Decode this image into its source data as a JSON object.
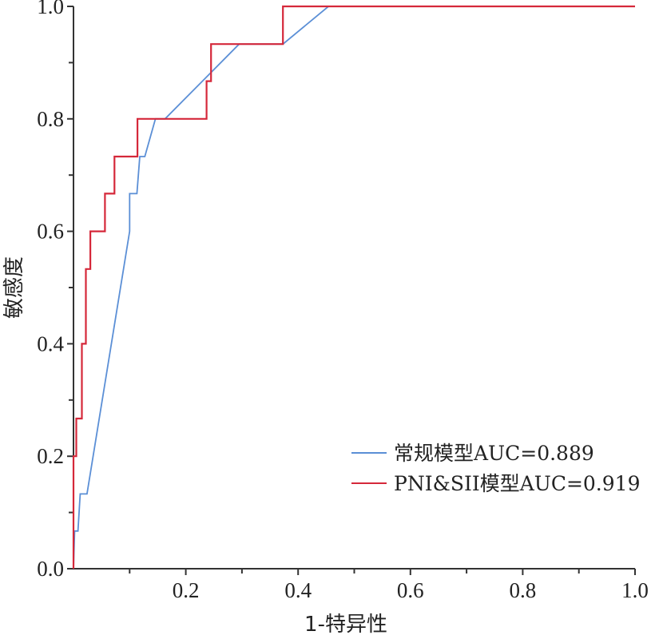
{
  "chart_data": {
    "type": "line",
    "xlabel": "1-特异性",
    "ylabel": "敏感度",
    "xlim": [
      0,
      1
    ],
    "ylim": [
      0,
      1
    ],
    "xticks": [
      "0.2",
      "0.4",
      "0.6",
      "0.8",
      "1.0"
    ],
    "yticks": [
      "0.0",
      "0.2",
      "0.4",
      "0.6",
      "0.8",
      "1.0"
    ],
    "grid": false,
    "legend_position": "bottom-right",
    "series": [
      {
        "name": "常规模型AUC=0.889",
        "color": "#5b8fd6",
        "x": [
          0,
          0.002,
          0.008,
          0.012,
          0.016,
          0.024,
          0.1,
          0.1,
          0.113,
          0.118,
          0.127,
          0.146,
          0.163,
          0.295,
          0.373,
          0.454,
          1.0
        ],
        "y": [
          0,
          0.067,
          0.067,
          0.133,
          0.133,
          0.133,
          0.6,
          0.667,
          0.667,
          0.733,
          0.733,
          0.8,
          0.8,
          0.933,
          0.933,
          1.0,
          1.0
        ]
      },
      {
        "name": "PNI&SII模型AUC=0.919",
        "color": "#d5283a",
        "x": [
          0,
          0,
          0.005,
          0.005,
          0.015,
          0.015,
          0.022,
          0.022,
          0.03,
          0.03,
          0.056,
          0.056,
          0.073,
          0.073,
          0.114,
          0.114,
          0.237,
          0.237,
          0.245,
          0.245,
          0.373,
          0.373,
          1.0
        ],
        "y": [
          0,
          0.2,
          0.2,
          0.267,
          0.267,
          0.4,
          0.4,
          0.533,
          0.533,
          0.6,
          0.6,
          0.667,
          0.667,
          0.733,
          0.733,
          0.8,
          0.8,
          0.867,
          0.867,
          0.933,
          0.933,
          1.0,
          1.0
        ]
      }
    ]
  }
}
